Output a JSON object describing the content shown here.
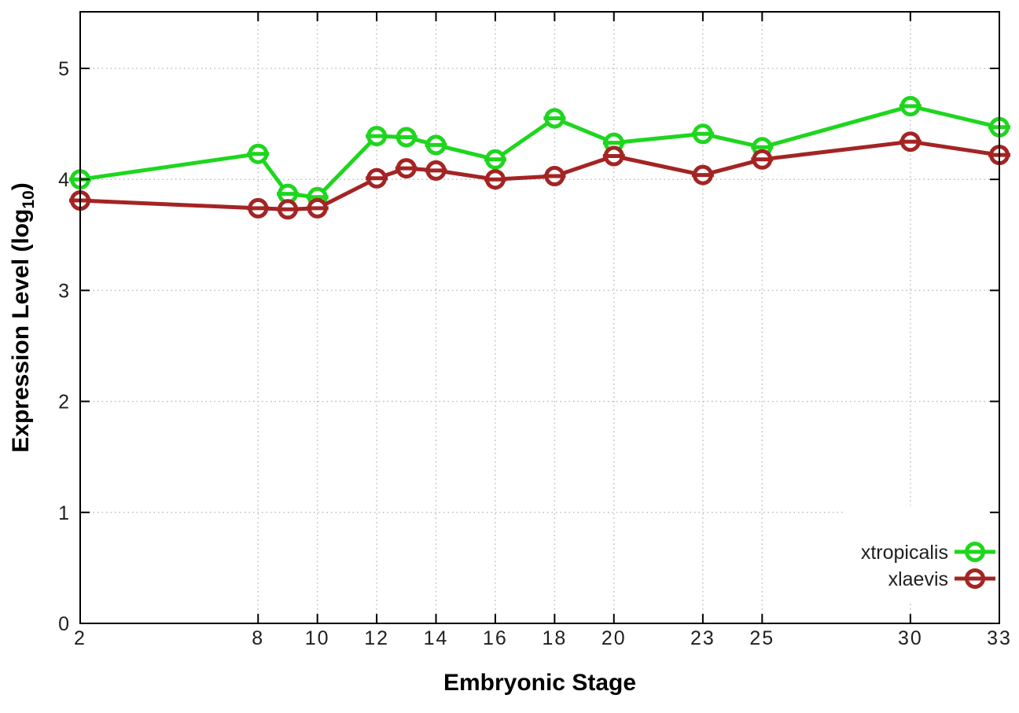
{
  "figure": {
    "background": "#ffffff",
    "border_color": "#000000",
    "grid_color": "#bdbdbd",
    "tick_label_color": "#1f1f1f",
    "axis_title_color": "#000000"
  },
  "chart_data": {
    "type": "line",
    "title": "",
    "xlabel": "Embryonic Stage",
    "ylabel": "Expression Level (log10)",
    "ylabel_parts": {
      "prefix": "Expression Level (log",
      "subscript": "10",
      "suffix": ")"
    },
    "x": [
      2,
      8,
      9,
      10,
      12,
      13,
      14,
      16,
      18,
      20,
      23,
      25,
      30,
      33
    ],
    "x_tick_values": [
      2,
      8,
      10,
      12,
      14,
      16,
      18,
      20,
      23,
      25,
      30,
      33
    ],
    "x_tick_labels": [
      "2",
      "8",
      "10",
      "12",
      "14",
      "16",
      "18",
      "20",
      "23",
      "25",
      "30",
      "33"
    ],
    "y_tick_values": [
      0,
      1,
      2,
      3,
      4,
      5
    ],
    "y_tick_labels": [
      "0",
      "1",
      "2",
      "3",
      "4",
      "5"
    ],
    "xlim": [
      2,
      33
    ],
    "ylim": [
      0,
      5.5
    ],
    "grid": true,
    "marker": "open-circle-with-error-cap",
    "legend": {
      "position": "inside-bottom-right"
    },
    "series": [
      {
        "name": "xtropicalis",
        "color": "#1ed61e",
        "x": [
          2,
          8,
          9,
          10,
          12,
          13,
          14,
          16,
          18,
          20,
          23,
          25,
          30,
          33
        ],
        "values": [
          4.0,
          4.23,
          3.87,
          3.84,
          4.39,
          4.38,
          4.31,
          4.18,
          4.55,
          4.33,
          4.41,
          4.29,
          4.66,
          4.47
        ]
      },
      {
        "name": "xlaevis",
        "color": "#a42424",
        "x": [
          2,
          8,
          9,
          10,
          12,
          13,
          14,
          16,
          18,
          20,
          23,
          25,
          30,
          33
        ],
        "values": [
          3.81,
          3.74,
          3.73,
          3.74,
          4.01,
          4.1,
          4.08,
          4.0,
          4.03,
          4.21,
          4.04,
          4.18,
          4.34,
          4.22
        ]
      }
    ]
  }
}
